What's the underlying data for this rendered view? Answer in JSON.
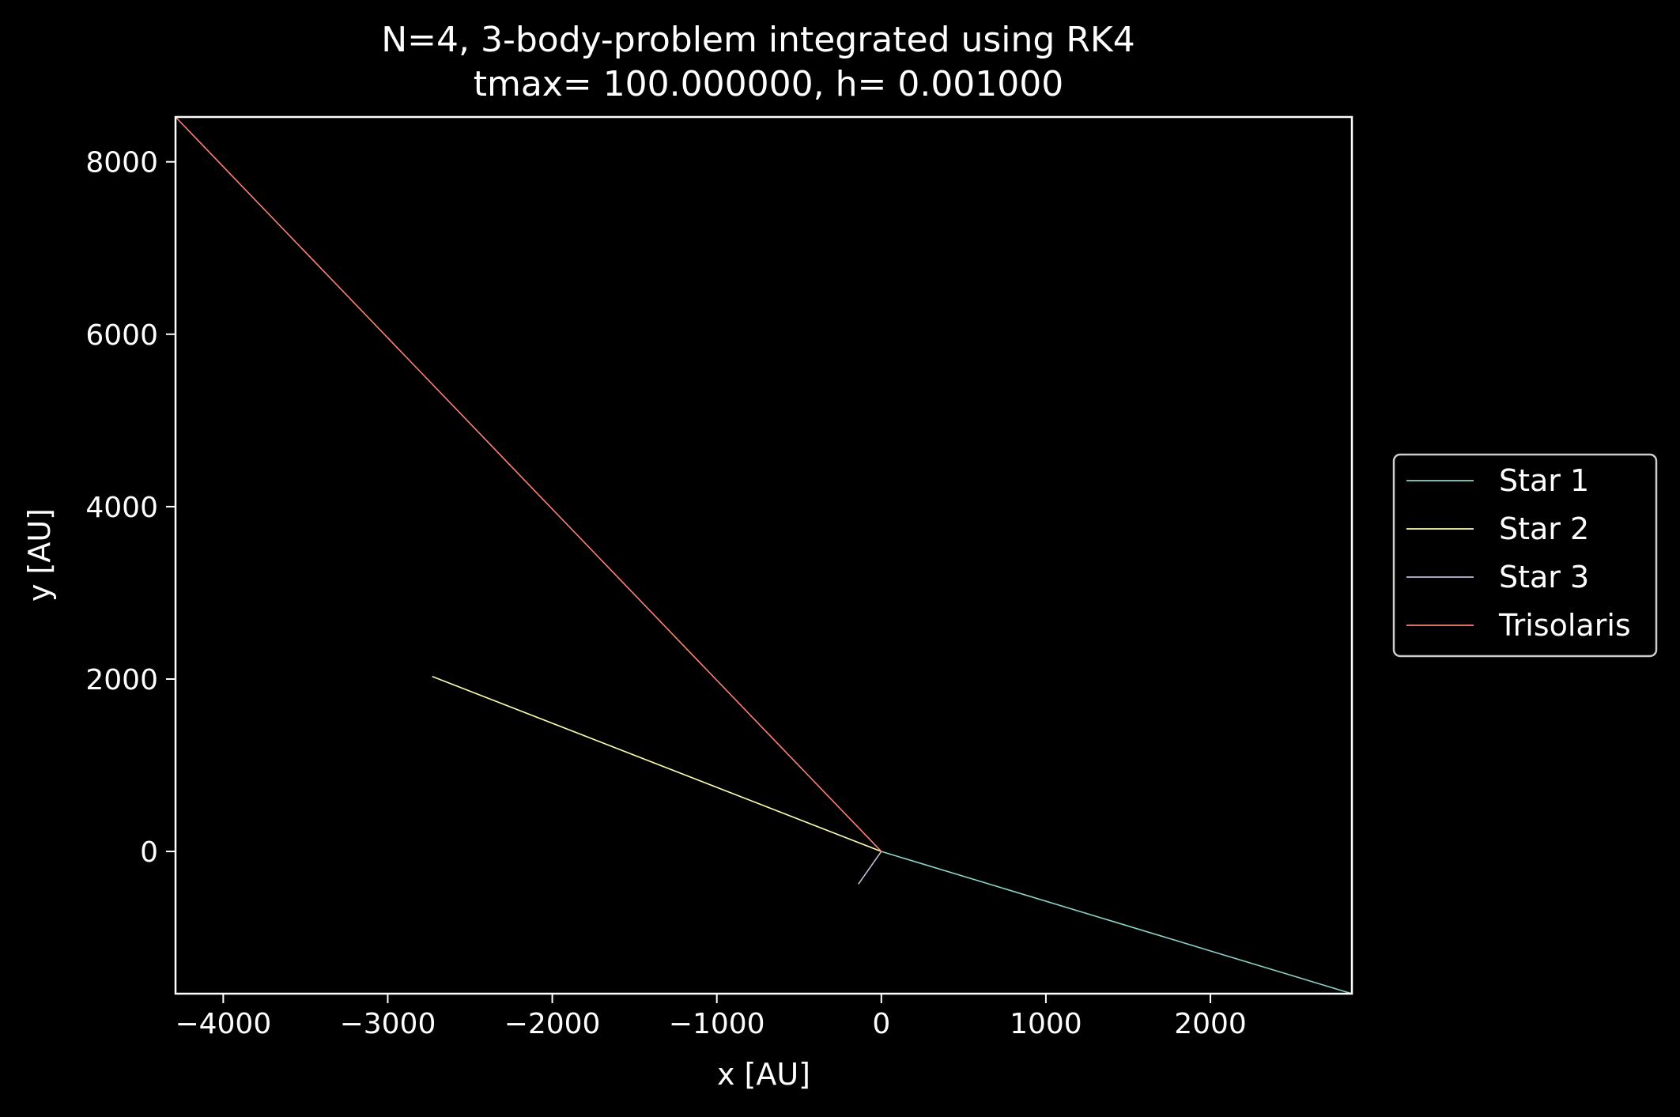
{
  "chart_data": {
    "type": "line",
    "title_line1": "N=4, 3-body-problem integrated using RK4",
    "title_line2": "tmax= 100.000000, h= 0.001000",
    "xlabel": "x [AU]",
    "ylabel": "y [AU]",
    "xlim": [
      -4290,
      2860
    ],
    "ylim": [
      -1650,
      8520
    ],
    "xticks": [
      -4000,
      -3000,
      -2000,
      -1000,
      0,
      1000,
      2000
    ],
    "xtick_labels": [
      "−4000",
      "−3000",
      "−2000",
      "−1000",
      "0",
      "1000",
      "2000"
    ],
    "yticks": [
      0,
      2000,
      4000,
      6000,
      8000
    ],
    "ytick_labels": [
      "0",
      "2000",
      "4000",
      "6000",
      "8000"
    ],
    "grid": false,
    "legend_position": "outside right",
    "background": "#000000",
    "series": [
      {
        "name": "Star 1",
        "color": "#8dd3c7",
        "x": [
          0,
          2860
        ],
        "y": [
          0,
          -1650
        ]
      },
      {
        "name": "Star 2",
        "color": "#feffb3",
        "x": [
          0,
          -2730
        ],
        "y": [
          0,
          2030
        ]
      },
      {
        "name": "Star 3",
        "color": "#bfbbd9",
        "x": [
          0,
          -140
        ],
        "y": [
          0,
          -380
        ]
      },
      {
        "name": "Trisolaris",
        "color": "#fa8174",
        "x": [
          0,
          -4290
        ],
        "y": [
          0,
          8520
        ]
      }
    ]
  }
}
